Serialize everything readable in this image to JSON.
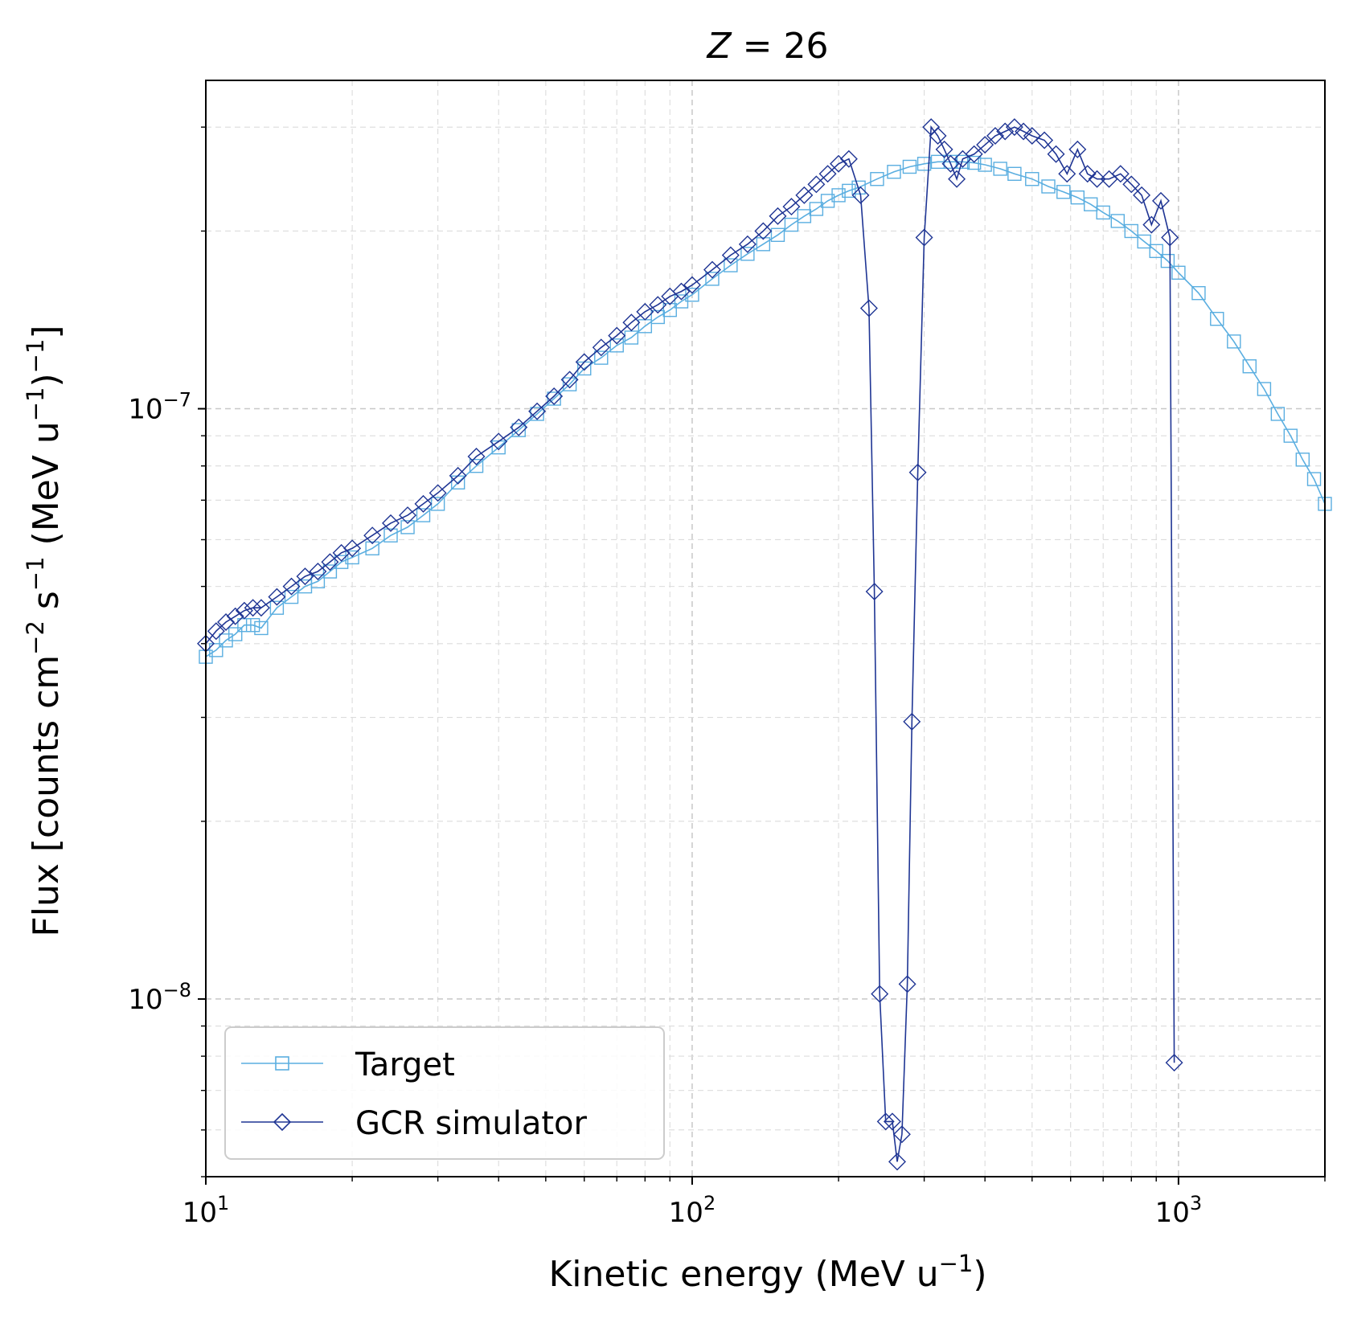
{
  "chart_data": {
    "type": "line",
    "title": "Z = 26",
    "title_var": "Z",
    "title_eq": " = 26",
    "xlabel": "Kinetic energy (MeV u⁻¹)",
    "xlabel_main": "Kinetic energy (MeV u",
    "xlabel_sup": "−1",
    "xlabel_end": ")",
    "ylabel": "Flux [counts cm⁻² s⁻¹ (MeV u⁻¹)⁻¹]",
    "xscale": "log",
    "yscale": "log",
    "xlim": [
      10,
      2000
    ],
    "ylim": [
      5e-09,
      3.6e-07
    ],
    "grid": true,
    "legend_position": "lower-left",
    "x_tick_labels": [
      {
        "value": 10,
        "base": "10",
        "exp": "1"
      },
      {
        "value": 100,
        "base": "10",
        "exp": "2"
      },
      {
        "value": 1000,
        "base": "10",
        "exp": "3"
      }
    ],
    "y_tick_labels": [
      {
        "value": 1e-07,
        "base": "10",
        "exp": "−7"
      },
      {
        "value": 1e-08,
        "base": "10",
        "exp": "−8"
      }
    ],
    "series": [
      {
        "name": "Target",
        "color": "#5aaee0",
        "marker": "square",
        "x": [
          10,
          10.5,
          11,
          11.5,
          12,
          12.5,
          13,
          14,
          15,
          16,
          17,
          18,
          19,
          20,
          22,
          24,
          26,
          28,
          30,
          33,
          36,
          40,
          44,
          48,
          52,
          56,
          60,
          65,
          70,
          75,
          80,
          85,
          90,
          95,
          100,
          110,
          120,
          130,
          140,
          150,
          160,
          170,
          180,
          190,
          200,
          210,
          220,
          240,
          260,
          280,
          300,
          320,
          340,
          360,
          380,
          400,
          430,
          460,
          500,
          540,
          580,
          620,
          660,
          700,
          750,
          800,
          850,
          900,
          950,
          1000,
          1100,
          1200,
          1300,
          1400,
          1500,
          1600,
          1700,
          1800,
          1900,
          2000
        ],
        "y": [
          3.8e-08,
          3.9e-08,
          4.05e-08,
          4.15e-08,
          4.3e-08,
          4.3e-08,
          4.25e-08,
          4.6e-08,
          4.8e-08,
          5e-08,
          5.1e-08,
          5.3e-08,
          5.5e-08,
          5.6e-08,
          5.8e-08,
          6.1e-08,
          6.3e-08,
          6.6e-08,
          6.9e-08,
          7.5e-08,
          8e-08,
          8.6e-08,
          9.2e-08,
          9.8e-08,
          1.04e-07,
          1.1e-07,
          1.17e-07,
          1.22e-07,
          1.28e-07,
          1.32e-07,
          1.38e-07,
          1.43e-07,
          1.47e-07,
          1.52e-07,
          1.56e-07,
          1.66e-07,
          1.75e-07,
          1.83e-07,
          1.9e-07,
          1.97e-07,
          2.05e-07,
          2.12e-07,
          2.18e-07,
          2.25e-07,
          2.3e-07,
          2.34e-07,
          2.37e-07,
          2.45e-07,
          2.52e-07,
          2.57e-07,
          2.6e-07,
          2.62e-07,
          2.62e-07,
          2.62e-07,
          2.61e-07,
          2.59e-07,
          2.55e-07,
          2.5e-07,
          2.45e-07,
          2.38e-07,
          2.33e-07,
          2.28e-07,
          2.22e-07,
          2.15e-07,
          2.08e-07,
          2e-07,
          1.92e-07,
          1.85e-07,
          1.78e-07,
          1.7e-07,
          1.57e-07,
          1.42e-07,
          1.3e-07,
          1.18e-07,
          1.08e-07,
          9.8e-08,
          9e-08,
          8.2e-08,
          7.6e-08,
          6.9e-08
        ]
      },
      {
        "name": "GCR simulator",
        "color": "#1f3594",
        "marker": "diamond",
        "x": [
          10,
          10.5,
          11,
          11.5,
          12,
          12.5,
          13,
          14,
          15,
          16,
          17,
          18,
          19,
          20,
          22,
          24,
          26,
          28,
          30,
          33,
          36,
          40,
          44,
          48,
          52,
          56,
          60,
          65,
          70,
          75,
          80,
          85,
          90,
          95,
          100,
          110,
          120,
          130,
          140,
          150,
          160,
          170,
          180,
          190,
          200,
          210,
          222,
          231,
          237,
          243,
          250,
          258,
          264,
          270,
          277,
          283,
          291,
          300,
          310,
          320,
          330,
          340,
          350,
          360,
          380,
          400,
          420,
          440,
          460,
          480,
          500,
          530,
          560,
          590,
          620,
          650,
          680,
          720,
          760,
          800,
          840,
          880,
          920,
          960,
          980
        ],
        "y": [
          4e-08,
          4.2e-08,
          4.35e-08,
          4.45e-08,
          4.55e-08,
          4.6e-08,
          4.6e-08,
          4.8e-08,
          5e-08,
          5.2e-08,
          5.3e-08,
          5.5e-08,
          5.7e-08,
          5.8e-08,
          6.1e-08,
          6.4e-08,
          6.6e-08,
          6.9e-08,
          7.2e-08,
          7.7e-08,
          8.3e-08,
          8.8e-08,
          9.3e-08,
          9.9e-08,
          1.05e-07,
          1.12e-07,
          1.2e-07,
          1.27e-07,
          1.33e-07,
          1.4e-07,
          1.46e-07,
          1.5e-07,
          1.55e-07,
          1.58e-07,
          1.62e-07,
          1.72e-07,
          1.82e-07,
          1.9e-07,
          2e-07,
          2.12e-07,
          2.2e-07,
          2.3e-07,
          2.4e-07,
          2.5e-07,
          2.6e-07,
          2.65e-07,
          2.3e-07,
          1.48e-07,
          4.9e-08,
          1.02e-08,
          6.2e-09,
          6.2e-09,
          5.3e-09,
          5.9e-09,
          1.06e-08,
          2.95e-08,
          7.8e-08,
          1.95e-07,
          3e-07,
          2.9e-07,
          2.75e-07,
          2.6e-07,
          2.45e-07,
          2.65e-07,
          2.7e-07,
          2.8e-07,
          2.9e-07,
          2.95e-07,
          3e-07,
          2.95e-07,
          2.9e-07,
          2.85e-07,
          2.7e-07,
          2.5e-07,
          2.75e-07,
          2.5e-07,
          2.45e-07,
          2.45e-07,
          2.5e-07,
          2.4e-07,
          2.3e-07,
          2.05e-07,
          2.25e-07,
          1.95e-07,
          7.8e-09
        ]
      }
    ]
  }
}
